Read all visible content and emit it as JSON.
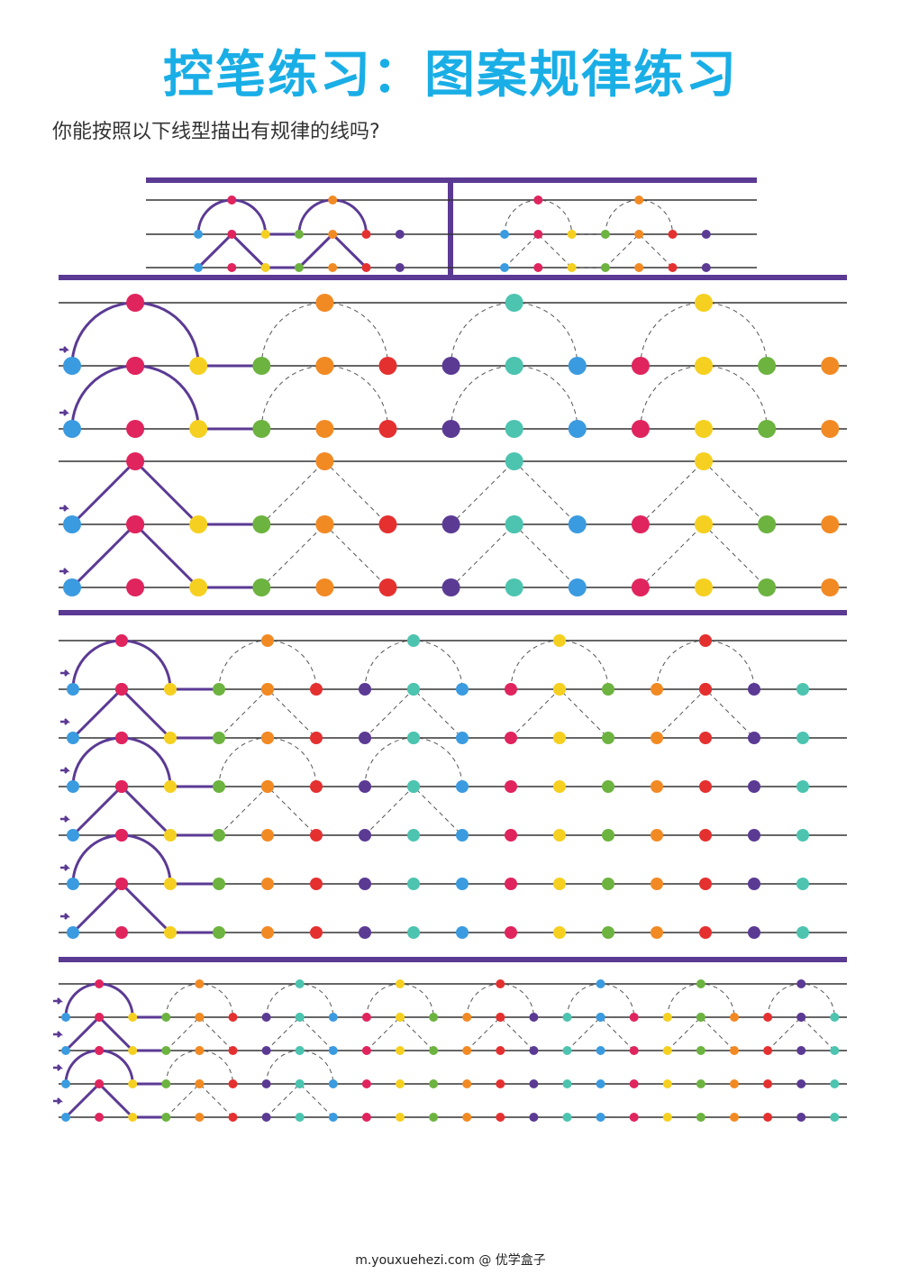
{
  "header": {
    "title": "控笔练习：图案规律练习",
    "subtitle": "你能按照以下线型描出有规律的线吗?"
  },
  "footer": {
    "text": "m.youxuehezi.com @ 优学盒子"
  }
}
